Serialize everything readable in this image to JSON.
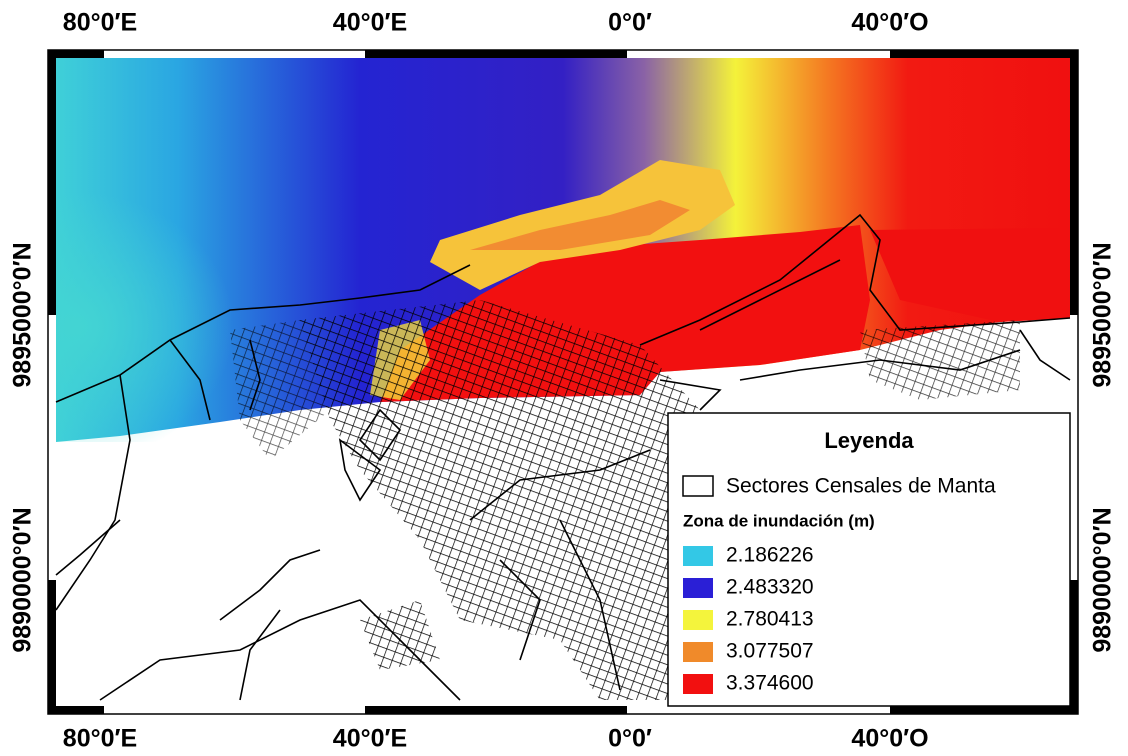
{
  "map": {
    "top_labels": [
      "80°0′E",
      "40°0′E",
      "0°0′",
      "40°0′O"
    ],
    "bottom_labels": [
      "80°0′E",
      "40°0′E",
      "0°0′",
      "40°0′O"
    ],
    "left_labels": [
      "9895000°0′N",
      "9890000°0′N"
    ],
    "right_labels": [
      "9895000°0′N",
      "9890000°0′N"
    ],
    "legend": {
      "title": "Leyenda",
      "boundary": "Sectores Censales de Manta",
      "subtitle": "Zona de inundación (m)",
      "classes": [
        {
          "label": "2.186226",
          "color": "#33c8e6"
        },
        {
          "label": "2.483320",
          "color": "#2a1fd6"
        },
        {
          "label": "2.780413",
          "color": "#f4f43c"
        },
        {
          "label": "3.077507",
          "color": "#f08a2a"
        },
        {
          "label": "3.374600",
          "color": "#f21010"
        }
      ]
    }
  }
}
